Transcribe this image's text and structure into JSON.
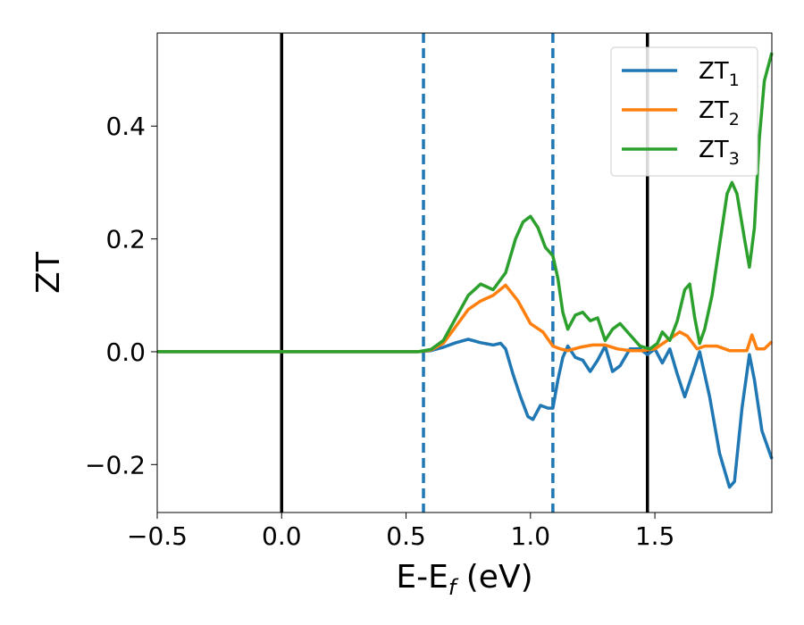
{
  "chart_data": {
    "type": "line",
    "xlabel": {
      "main": "E-E",
      "sub": "f",
      "unit": " (eV)"
    },
    "ylabel": "ZT",
    "xlim": [
      -0.5,
      1.97
    ],
    "ylim": [
      -0.285,
      0.565
    ],
    "x_ticks": [
      {
        "value": -0.5,
        "label": "−0.5"
      },
      {
        "value": 0.0,
        "label": "0.0"
      },
      {
        "value": 0.5,
        "label": "0.5"
      },
      {
        "value": 1.0,
        "label": "1.0"
      },
      {
        "value": 1.5,
        "label": "1.5"
      }
    ],
    "y_ticks": [
      {
        "value": -0.2,
        "label": "−0.2"
      },
      {
        "value": 0.0,
        "label": "0.0"
      },
      {
        "value": 0.2,
        "label": "0.2"
      },
      {
        "value": 0.4,
        "label": "0.4"
      }
    ],
    "grid": false,
    "legend_position": "top-right",
    "vertical_lines": [
      {
        "x": 0.0,
        "style": "solid",
        "color": "#000000"
      },
      {
        "x": 0.57,
        "style": "dashed",
        "color": "#1f77b4"
      },
      {
        "x": 1.09,
        "style": "dashed",
        "color": "#1f77b4"
      },
      {
        "x": 1.47,
        "style": "solid",
        "color": "#000000"
      }
    ],
    "series": [
      {
        "name": "ZT",
        "sub": "1",
        "color": "#1f77b4",
        "points": [
          [
            -0.5,
            0
          ],
          [
            0.55,
            0
          ],
          [
            0.6,
            0.002
          ],
          [
            0.65,
            0.008
          ],
          [
            0.7,
            0.016
          ],
          [
            0.75,
            0.022
          ],
          [
            0.8,
            0.016
          ],
          [
            0.85,
            0.012
          ],
          [
            0.88,
            0.015
          ],
          [
            0.9,
            0.005
          ],
          [
            0.93,
            -0.04
          ],
          [
            0.96,
            -0.08
          ],
          [
            0.99,
            -0.115
          ],
          [
            1.01,
            -0.12
          ],
          [
            1.04,
            -0.095
          ],
          [
            1.07,
            -0.1
          ],
          [
            1.09,
            -0.1
          ],
          [
            1.11,
            -0.05
          ],
          [
            1.13,
            -0.01
          ],
          [
            1.15,
            0.01
          ],
          [
            1.18,
            -0.01
          ],
          [
            1.21,
            -0.015
          ],
          [
            1.24,
            -0.035
          ],
          [
            1.27,
            -0.015
          ],
          [
            1.3,
            0.01
          ],
          [
            1.33,
            -0.035
          ],
          [
            1.36,
            -0.025
          ],
          [
            1.4,
            0.005
          ],
          [
            1.44,
            0.005
          ],
          [
            1.47,
            -0.005
          ],
          [
            1.5,
            0.005
          ],
          [
            1.53,
            -0.02
          ],
          [
            1.56,
            0.005
          ],
          [
            1.59,
            -0.04
          ],
          [
            1.62,
            -0.08
          ],
          [
            1.65,
            -0.04
          ],
          [
            1.68,
            0.0
          ],
          [
            1.72,
            -0.08
          ],
          [
            1.76,
            -0.18
          ],
          [
            1.8,
            -0.24
          ],
          [
            1.82,
            -0.23
          ],
          [
            1.85,
            -0.1
          ],
          [
            1.88,
            -0.005
          ],
          [
            1.9,
            -0.05
          ],
          [
            1.93,
            -0.14
          ],
          [
            1.97,
            -0.19
          ]
        ]
      },
      {
        "name": "ZT",
        "sub": "2",
        "color": "#ff7f0e",
        "points": [
          [
            -0.5,
            0
          ],
          [
            0.55,
            0
          ],
          [
            0.6,
            0.003
          ],
          [
            0.65,
            0.015
          ],
          [
            0.7,
            0.045
          ],
          [
            0.75,
            0.075
          ],
          [
            0.8,
            0.09
          ],
          [
            0.85,
            0.1
          ],
          [
            0.9,
            0.118
          ],
          [
            0.95,
            0.09
          ],
          [
            1.0,
            0.05
          ],
          [
            1.05,
            0.035
          ],
          [
            1.09,
            0.01
          ],
          [
            1.12,
            0.005
          ],
          [
            1.15,
            0.002
          ],
          [
            1.2,
            0.008
          ],
          [
            1.25,
            0.012
          ],
          [
            1.3,
            0.012
          ],
          [
            1.35,
            0.005
          ],
          [
            1.4,
            0.002
          ],
          [
            1.45,
            0.002
          ],
          [
            1.5,
            0.005
          ],
          [
            1.55,
            0.02
          ],
          [
            1.6,
            0.035
          ],
          [
            1.63,
            0.028
          ],
          [
            1.67,
            0.005
          ],
          [
            1.7,
            0.01
          ],
          [
            1.75,
            0.01
          ],
          [
            1.8,
            0.002
          ],
          [
            1.87,
            0.002
          ],
          [
            1.89,
            0.03
          ],
          [
            1.91,
            0.005
          ],
          [
            1.94,
            0.005
          ],
          [
            1.97,
            0.018
          ]
        ]
      },
      {
        "name": "ZT",
        "sub": "3",
        "color": "#2ca02c",
        "points": [
          [
            -0.5,
            0
          ],
          [
            0.55,
            0
          ],
          [
            0.6,
            0.004
          ],
          [
            0.65,
            0.02
          ],
          [
            0.7,
            0.06
          ],
          [
            0.75,
            0.1
          ],
          [
            0.8,
            0.12
          ],
          [
            0.85,
            0.11
          ],
          [
            0.9,
            0.14
          ],
          [
            0.94,
            0.2
          ],
          [
            0.97,
            0.23
          ],
          [
            1.0,
            0.24
          ],
          [
            1.03,
            0.22
          ],
          [
            1.06,
            0.185
          ],
          [
            1.09,
            0.17
          ],
          [
            1.11,
            0.13
          ],
          [
            1.13,
            0.07
          ],
          [
            1.15,
            0.04
          ],
          [
            1.18,
            0.065
          ],
          [
            1.21,
            0.07
          ],
          [
            1.24,
            0.055
          ],
          [
            1.27,
            0.06
          ],
          [
            1.3,
            0.02
          ],
          [
            1.33,
            0.04
          ],
          [
            1.36,
            0.05
          ],
          [
            1.4,
            0.03
          ],
          [
            1.44,
            0.01
          ],
          [
            1.48,
            0.005
          ],
          [
            1.51,
            0.015
          ],
          [
            1.53,
            0.035
          ],
          [
            1.56,
            0.02
          ],
          [
            1.59,
            0.055
          ],
          [
            1.62,
            0.11
          ],
          [
            1.64,
            0.12
          ],
          [
            1.66,
            0.06
          ],
          [
            1.68,
            0.015
          ],
          [
            1.7,
            0.04
          ],
          [
            1.73,
            0.1
          ],
          [
            1.76,
            0.19
          ],
          [
            1.79,
            0.28
          ],
          [
            1.81,
            0.3
          ],
          [
            1.83,
            0.28
          ],
          [
            1.86,
            0.2
          ],
          [
            1.88,
            0.15
          ],
          [
            1.9,
            0.22
          ],
          [
            1.92,
            0.38
          ],
          [
            1.94,
            0.48
          ],
          [
            1.97,
            0.53
          ]
        ]
      }
    ]
  }
}
